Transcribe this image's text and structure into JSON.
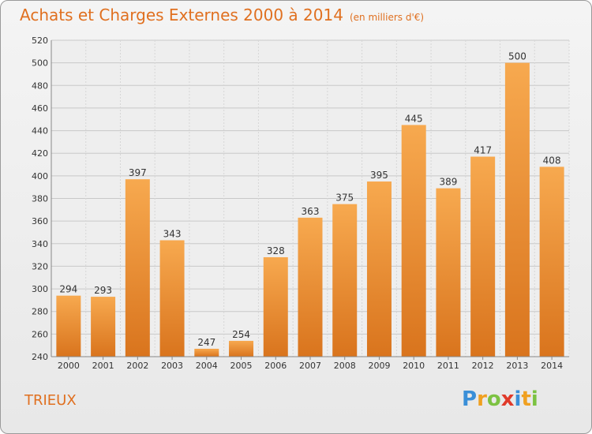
{
  "title": "Achats et Charges Externes 2000 à 2014",
  "subtitle": "(en milliers d'€)",
  "commune": "TRIEUX",
  "logo": {
    "letters": [
      "P",
      "r",
      "o",
      "x",
      "i",
      "t",
      "i"
    ],
    "colors": [
      "#3a8fd8",
      "#f0a020",
      "#7cc242",
      "#e03a2a",
      "#3a8fd8",
      "#f0a020",
      "#7cc242"
    ]
  },
  "colors": {
    "bar_top": "#f7a94f",
    "bar_bottom": "#d9741d",
    "title": "#e07020",
    "grid": "#c8c8c8",
    "axis_text": "#333333"
  },
  "chart_data": {
    "type": "bar",
    "title": "Achats et Charges Externes 2000 à 2014",
    "subtitle": "(en milliers d'€)",
    "xlabel": "",
    "ylabel": "",
    "categories": [
      "2000",
      "2001",
      "2002",
      "2003",
      "2004",
      "2005",
      "2006",
      "2007",
      "2008",
      "2009",
      "2010",
      "2011",
      "2012",
      "2013",
      "2014"
    ],
    "values": [
      294,
      293,
      397,
      343,
      247,
      254,
      328,
      363,
      375,
      395,
      445,
      389,
      417,
      500,
      408
    ],
    "ylim": [
      240,
      520
    ],
    "yticks": [
      240,
      260,
      280,
      300,
      320,
      340,
      360,
      380,
      400,
      420,
      440,
      460,
      480,
      500,
      520
    ],
    "grid": true,
    "legend": "none"
  }
}
